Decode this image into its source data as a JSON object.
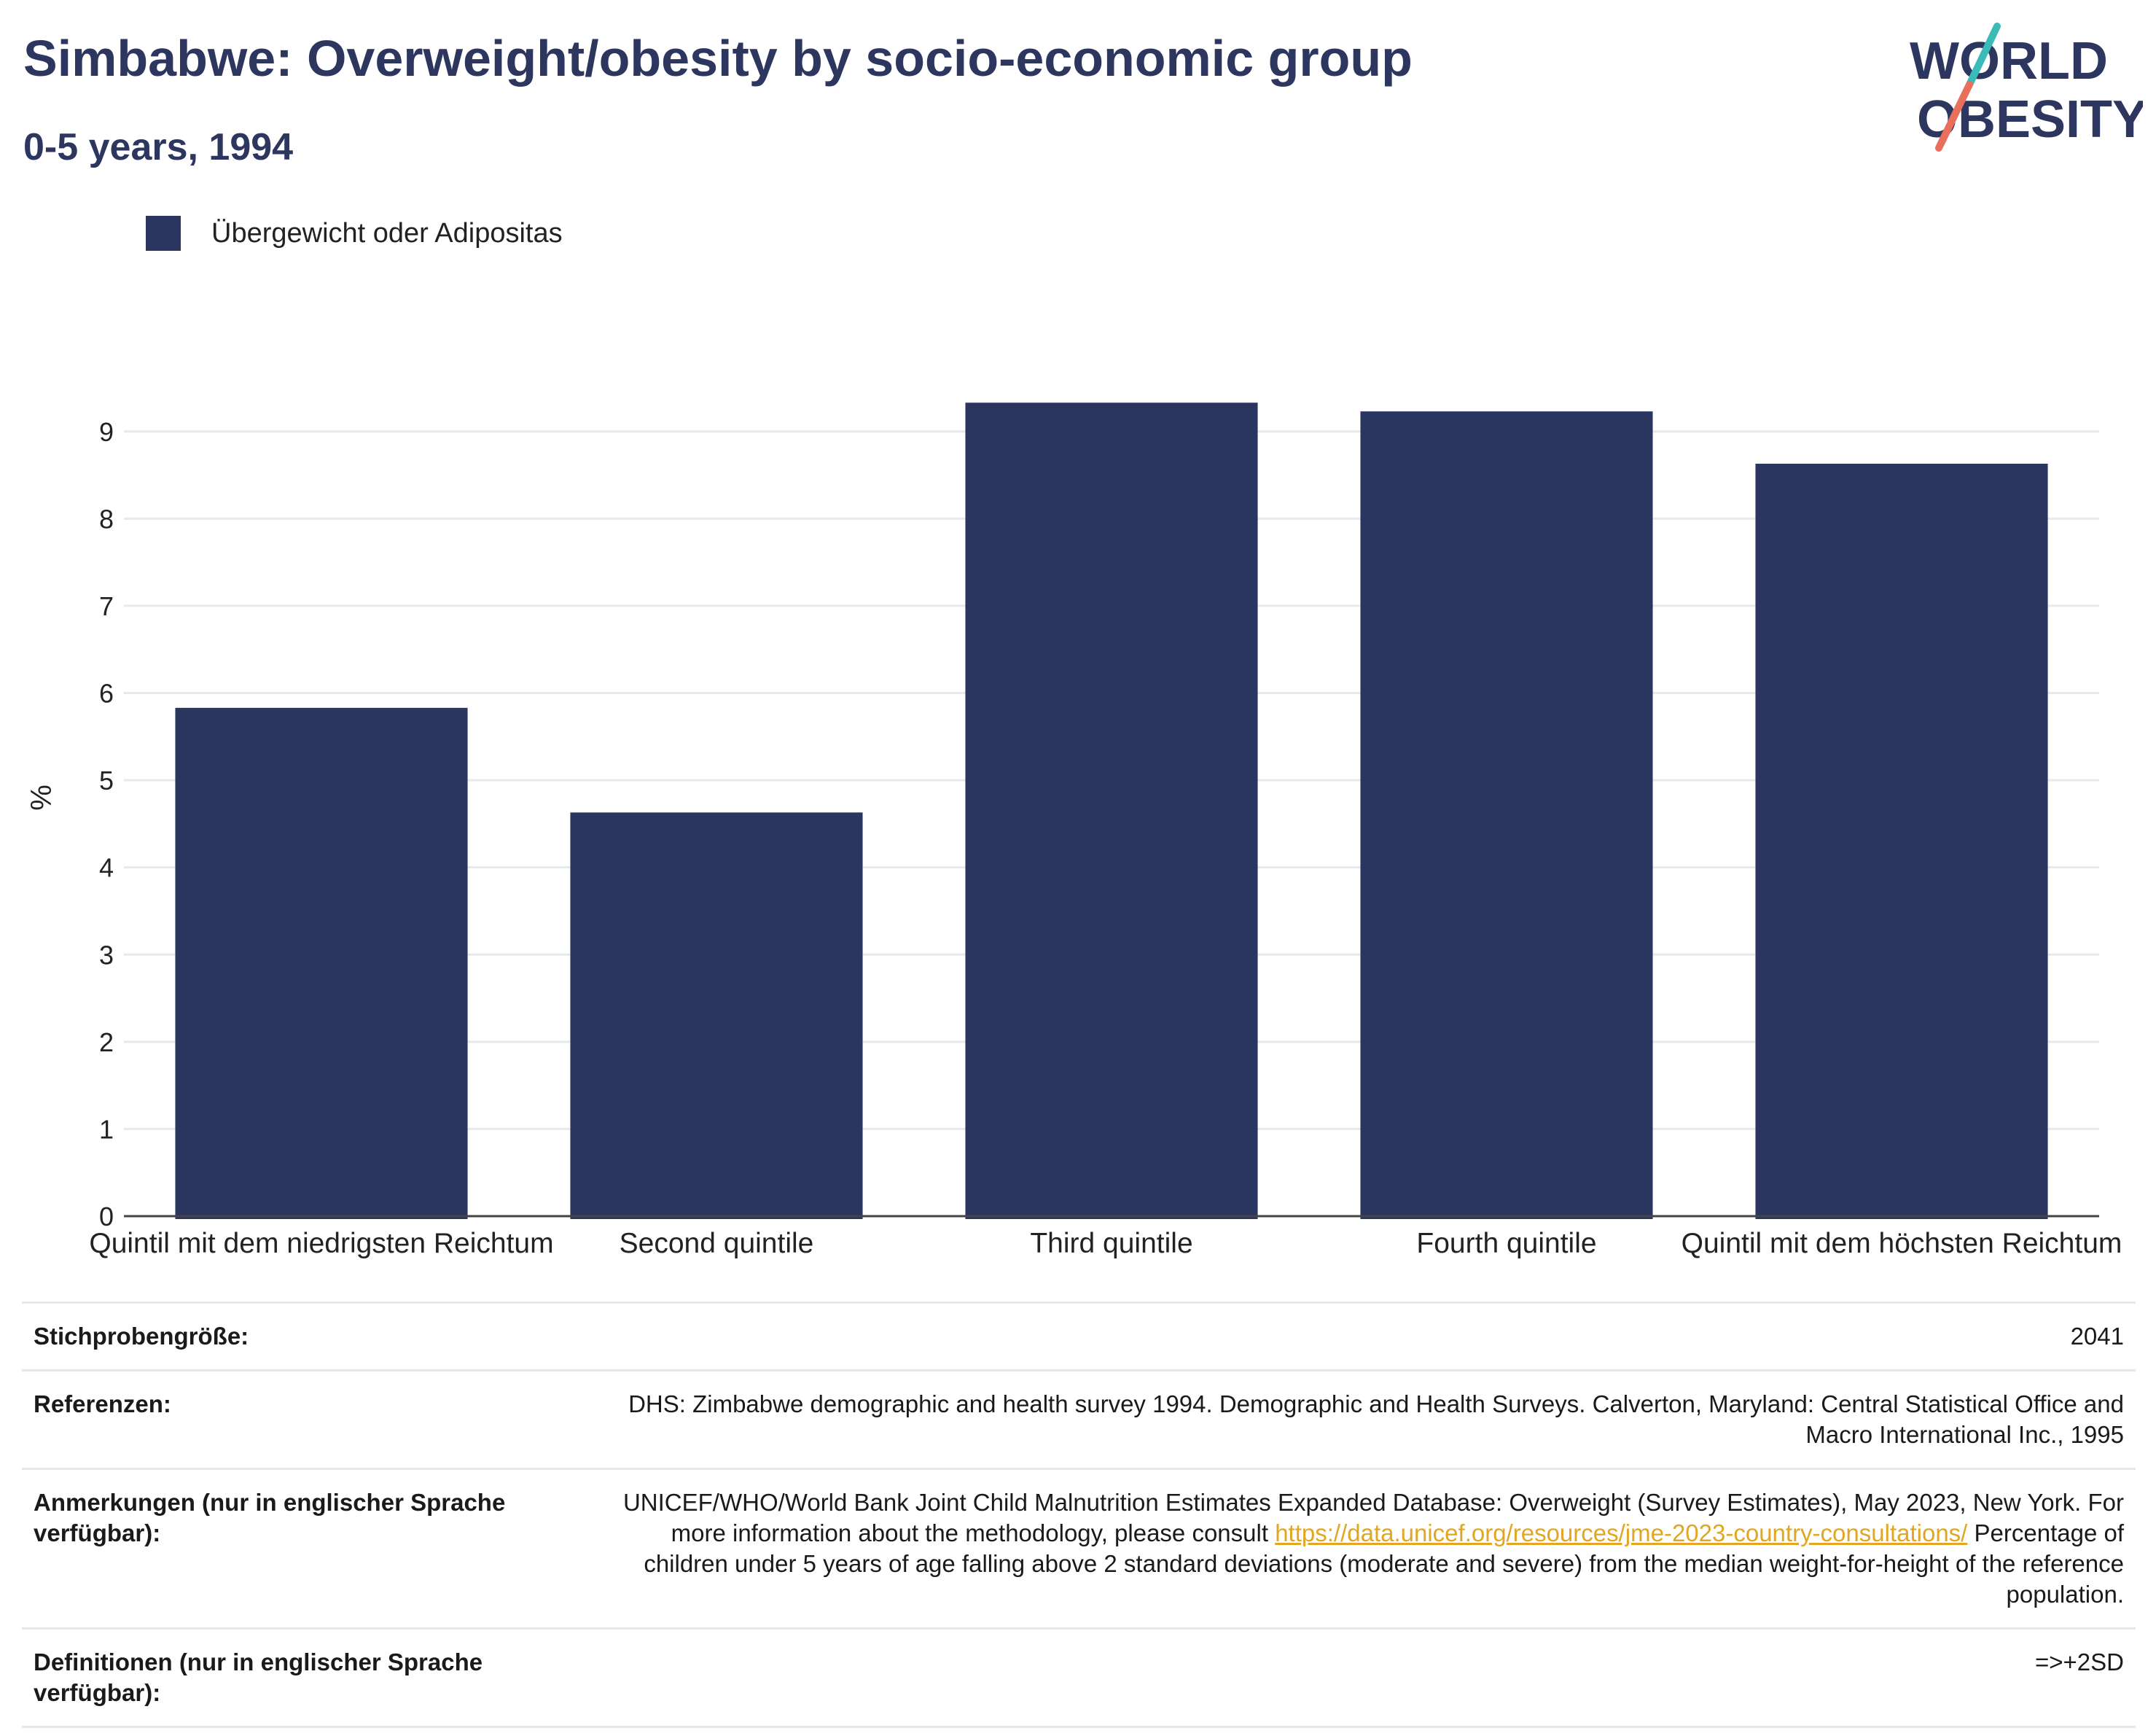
{
  "header": {
    "title": "Simbabwe: Overweight/obesity by socio-economic group",
    "subtitle": "0-5 years, 1994"
  },
  "logo": {
    "line1": "WORLD",
    "line2": "OBESITY",
    "icon": "world-obesity-logo"
  },
  "legend": {
    "label": "Übergewicht oder Adipositas",
    "color": "#2a3560"
  },
  "chart_data": {
    "type": "bar",
    "title": "Simbabwe: Overweight/obesity by socio-economic group",
    "subtitle": "0-5 years, 1994",
    "categories": [
      "Quintil mit dem niedrigsten Reichtum",
      "Second quintile",
      "Third quintile",
      "Fourth quintile",
      "Quintil mit dem höchsten Reichtum"
    ],
    "series": [
      {
        "name": "Übergewicht oder Adipositas",
        "values": [
          5.83,
          4.63,
          9.33,
          9.23,
          8.63
        ],
        "color": "#2a3560"
      }
    ],
    "xlabel": "",
    "ylabel": "%",
    "ylim": [
      0,
      9.6
    ],
    "yticks": [
      0,
      1,
      2,
      3,
      4,
      5,
      6,
      7,
      8,
      9
    ],
    "grid": true,
    "legend_position": "top-left"
  },
  "footer": {
    "sample_label": "Stichprobengröße:",
    "sample_value": "2041",
    "ref_label": "Referenzen:",
    "ref_value": "DHS: Zimbabwe demographic and health survey 1994. Demographic and Health Surveys. Calverton, Maryland: Central Statistical Office and Macro International Inc., 1995",
    "notes_label": "Anmerkungen (nur in englischer Sprache verfügbar):",
    "notes_before": "UNICEF/WHO/World Bank Joint Child Malnutrition Estimates Expanded Database: Overweight (Survey Estimates), May 2023, New York. For more information about the methodology, please consult ",
    "notes_link": "https://data.unicef.org/resources/jme-2023-country-consultations/",
    "notes_after": " Percentage of children under 5 years of age falling above 2 standard deviations (moderate and severe) from the median weight-for-height of the reference population.",
    "def_label": "Definitionen (nur in englischer Sprache verfügbar):",
    "def_value": "=>+2SD"
  }
}
